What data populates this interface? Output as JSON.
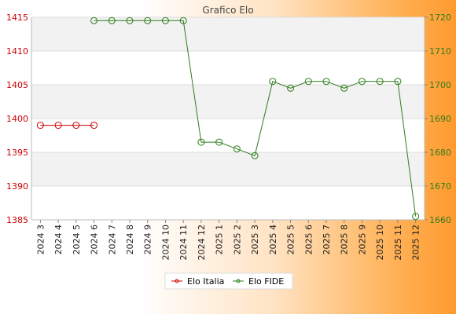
{
  "chart_data": {
    "type": "line",
    "title": "Grafico Elo",
    "categories": [
      "2024 3",
      "2024 4",
      "2024 5",
      "2024 6",
      "2024 7",
      "2024 8",
      "2024 9",
      "2024 10",
      "2024 11",
      "2024 12",
      "2025 1",
      "2025 2",
      "2025 3",
      "2025 4",
      "2025 5",
      "2025 6",
      "2025 7",
      "2025 8",
      "2025 9",
      "2025 10",
      "2025 11",
      "2025 12"
    ],
    "y_left": {
      "ticks": [
        1385,
        1390,
        1395,
        1400,
        1405,
        1410,
        1415
      ],
      "range": [
        1385,
        1415
      ],
      "color": "#cc0000"
    },
    "y_right": {
      "ticks": [
        1660,
        1670,
        1680,
        1690,
        1700,
        1710,
        1720
      ],
      "range": [
        1660,
        1720
      ],
      "color": "#2e7d1b"
    },
    "series": [
      {
        "name": "Elo Italia",
        "axis": "left",
        "color": "#cc0000",
        "values": [
          1399,
          1399,
          1399,
          1399,
          null,
          null,
          null,
          null,
          null,
          null,
          null,
          null,
          null,
          null,
          null,
          null,
          null,
          null,
          null,
          null,
          null,
          null
        ]
      },
      {
        "name": "Elo FIDE",
        "axis": "right",
        "color": "#2e7d1b",
        "values": [
          null,
          null,
          null,
          1719,
          1719,
          1719,
          1719,
          1719,
          1719,
          1683,
          1683,
          1681,
          1679,
          1701,
          1699,
          1701,
          1701,
          1699,
          1701,
          1701,
          1701,
          1661
        ]
      }
    ],
    "grid": true,
    "legend_position": "bottom"
  }
}
